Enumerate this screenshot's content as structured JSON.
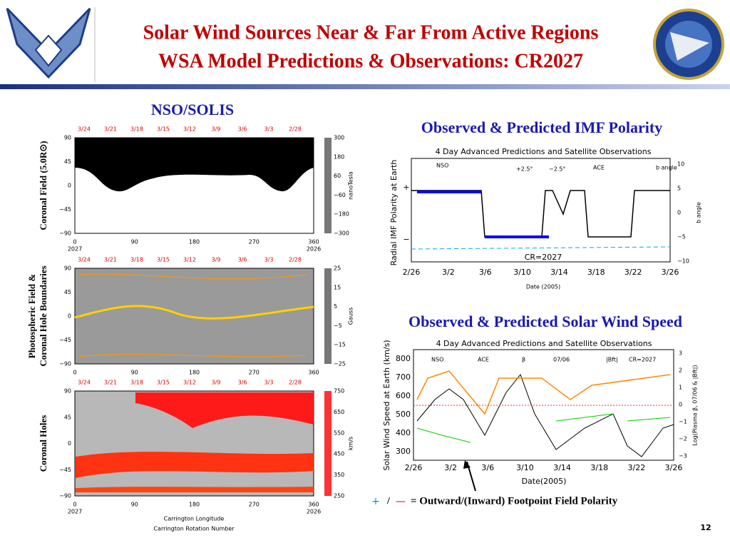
{
  "header": {
    "title_line1": "Solar Wind Sources Near & Far From Active Regions",
    "title_line2": "WSA Model Predictions & Observations: CR2027"
  },
  "left": {
    "heading": "NSO/SOLIS",
    "top_dates": [
      "3/24",
      "3/21",
      "3/18",
      "3/15",
      "3/12",
      "3/9",
      "3/6",
      "3/3",
      "2/28"
    ],
    "lat_ticks": [
      "90",
      "45",
      "0",
      "−45",
      "−90"
    ],
    "lon_ticks": [
      "0",
      "90",
      "180",
      "270",
      "360"
    ],
    "cr_start": "2027",
    "cr_end": "2026",
    "panels": [
      {
        "label": "Coronal Field (5.0R⊙)",
        "colorbar_ticks": [
          "300",
          "180",
          "60",
          "−60",
          "−180",
          "−300"
        ],
        "colorbar_unit": "nanoTesla"
      },
      {
        "label": [
          "Photospheric Field &",
          "Coronal Hole Boundaries"
        ],
        "colorbar_ticks": [
          "25",
          "15",
          "5",
          "−5",
          "−15",
          "−25"
        ],
        "colorbar_unit": "Gauss"
      },
      {
        "label": "Coronal Holes",
        "colorbar_ticks": [
          "750",
          "650",
          "550",
          "450",
          "350",
          "250"
        ],
        "colorbar_unit": "km/s"
      }
    ],
    "x_label": "Carrington Longitude",
    "x_label2": "Carrington Rotation Number"
  },
  "right": {
    "imf": {
      "heading": "Observed & Predicted IMF Polarity",
      "plot_title": "4 Day Advanced Predictions and Satellite Observations",
      "legend": [
        "NSO",
        "+2.5°",
        "−2.5°",
        "ACE",
        "b angle"
      ],
      "y_label": "Radial IMF Polarity at Earth",
      "y_ticks": [
        "+",
        "−"
      ],
      "y2_ticks": [
        "10",
        "5",
        "0",
        "−5",
        "−10"
      ],
      "y2_label": "b angle",
      "cr_note": "CR=2027",
      "x_ticks": [
        "2/26",
        "3/2",
        "3/6",
        "3/10",
        "3/14",
        "3/18",
        "3/22",
        "3/26"
      ],
      "x_label": "Date (2005)"
    },
    "wind": {
      "heading": "Observed & Predicted Solar Wind Speed",
      "plot_title": "4 Day Advanced Predictions and Satellite Observations",
      "legend": [
        "NSO",
        "ACE",
        "β",
        "07/06",
        "|Bft|",
        "CR=2027"
      ],
      "y_label": "Solar Wind Speed at Earth (km/s)",
      "y_ticks": [
        "800",
        "700",
        "600",
        "500",
        "400",
        "300"
      ],
      "y2_ticks": [
        "3",
        "2",
        "1",
        "0",
        "−1",
        "−2",
        "−3"
      ],
      "y2_label": "Log(Plasma β, 07/06 & |Bft|)",
      "x_ticks": [
        "2/26",
        "3/2",
        "3/6",
        "3/10",
        "3/14",
        "3/18",
        "3/22",
        "3/26"
      ],
      "x_label": "Date(2005)"
    }
  },
  "footer": {
    "plus": "+",
    "slash": "/",
    "dash": "—",
    "text": "= Outward/(Inward) Footpoint Field Polarity"
  },
  "page_number": "12"
}
